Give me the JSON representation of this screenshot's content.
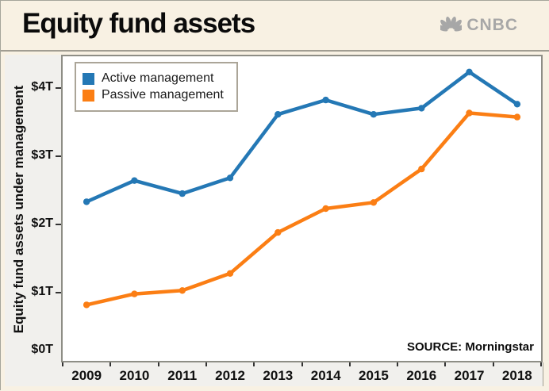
{
  "header": {
    "title": "Equity fund assets",
    "brand": "CNBC"
  },
  "source": "SOURCE: Morningstar",
  "colors": {
    "active_blue": "#2478b5",
    "passive_orange": "#fb7e14",
    "page_background": "#f8f1e3",
    "band_background": "#f1f0ed",
    "plot_background": "#ffffff",
    "logo_gray": "#a7a7a7"
  },
  "chart_data": {
    "type": "line",
    "categories": [
      "2009",
      "2010",
      "2011",
      "2012",
      "2013",
      "2014",
      "2015",
      "2016",
      "2017",
      "2018"
    ],
    "series": [
      {
        "name": "Active management",
        "color": "#2478b5",
        "values": [
          2.33,
          2.64,
          2.45,
          2.68,
          3.61,
          3.82,
          3.61,
          3.7,
          4.23,
          3.76
        ]
      },
      {
        "name": "Passive management",
        "color": "#fb7e14",
        "values": [
          0.82,
          0.98,
          1.03,
          1.28,
          1.88,
          2.23,
          2.32,
          2.81,
          3.63,
          3.57
        ]
      }
    ],
    "title": "Equity fund assets",
    "xlabel": "",
    "ylabel": "Equity fund assets under management",
    "ytick_values": [
      0,
      1,
      2,
      3,
      4
    ],
    "ytick_labels": [
      "$0T",
      "$1T",
      "$2T",
      "$3T",
      "$4T"
    ],
    "ylim": [
      0,
      4.46
    ],
    "grid": false,
    "legend_position": "top-left",
    "markers": true
  }
}
